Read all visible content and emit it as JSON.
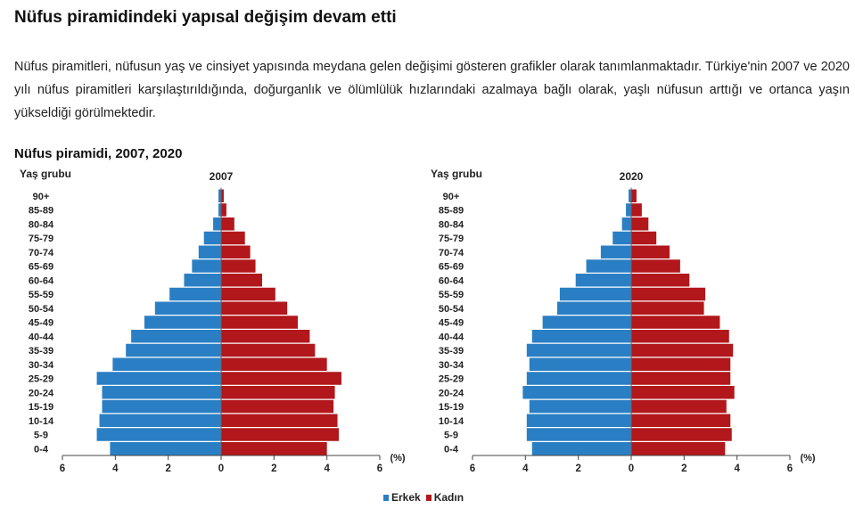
{
  "page": {
    "title": "Nüfus piramidindeki yapısal değişim devam etti",
    "paragraph": "Nüfus piramitleri, nüfusun yaş ve cinsiyet yapısında meydana gelen değişimi gösteren grafikler olarak tanımlanmaktadır. Türkiye'nin 2007 ve 2020 yılı nüfus piramitleri karşılaştırıldığında, doğurganlık ve ölümlülük hızlarındaki azalmaya bağlı olarak, yaşlı nüfusun arttığı ve ortanca yaşın yükseldiği görülmektedir.",
    "figure_title": "Nüfus piramidi, 2007, 2020"
  },
  "colors": {
    "erkek": "#2a7fc4",
    "kadin": "#b2171b"
  },
  "legend": {
    "erkek": "Erkek",
    "kadin": "Kadın"
  },
  "chart_data": [
    {
      "type": "bar",
      "title": "2007",
      "ylabel": "Yaş grubu",
      "xlabel": "(%)",
      "xlim": [
        -6,
        6
      ],
      "xticks": [
        "6",
        "4",
        "2",
        "0",
        "2",
        "4",
        "6"
      ],
      "categories": [
        "90+",
        "85-89",
        "80-84",
        "75-79",
        "70-74",
        "65-69",
        "60-64",
        "55-59",
        "50-54",
        "45-49",
        "40-44",
        "35-39",
        "30-34",
        "25-29",
        "20-24",
        "15-19",
        "10-14",
        "5-9",
        "0-4"
      ],
      "series": [
        {
          "name": "Erkek",
          "values": [
            0.1,
            0.1,
            0.3,
            0.65,
            0.85,
            1.1,
            1.4,
            1.95,
            2.5,
            2.9,
            3.4,
            3.6,
            4.1,
            4.7,
            4.5,
            4.5,
            4.6,
            4.7,
            4.2
          ]
        },
        {
          "name": "Kadın",
          "values": [
            0.1,
            0.2,
            0.5,
            0.9,
            1.1,
            1.3,
            1.55,
            2.05,
            2.5,
            2.9,
            3.35,
            3.55,
            4.0,
            4.55,
            4.3,
            4.25,
            4.4,
            4.45,
            4.0
          ]
        }
      ]
    },
    {
      "type": "bar",
      "title": "2020",
      "ylabel": "Yaş grubu",
      "xlabel": "(%)",
      "xlim": [
        -6,
        6
      ],
      "xticks": [
        "6",
        "4",
        "2",
        "0",
        "2",
        "4",
        "6"
      ],
      "categories": [
        "90+",
        "85-89",
        "80-84",
        "75-79",
        "70-74",
        "65-69",
        "60-64",
        "55-59",
        "50-54",
        "45-49",
        "40-44",
        "35-39",
        "30-34",
        "25-29",
        "20-24",
        "15-19",
        "10-14",
        "5-9",
        "0-4"
      ],
      "series": [
        {
          "name": "Erkek",
          "values": [
            0.1,
            0.2,
            0.35,
            0.7,
            1.15,
            1.7,
            2.1,
            2.7,
            2.8,
            3.35,
            3.75,
            3.95,
            3.85,
            3.95,
            4.1,
            3.85,
            3.95,
            3.95,
            3.75
          ]
        },
        {
          "name": "Kadın",
          "values": [
            0.2,
            0.4,
            0.65,
            0.95,
            1.45,
            1.85,
            2.2,
            2.8,
            2.75,
            3.35,
            3.7,
            3.85,
            3.75,
            3.75,
            3.9,
            3.6,
            3.75,
            3.8,
            3.55
          ]
        }
      ]
    }
  ]
}
